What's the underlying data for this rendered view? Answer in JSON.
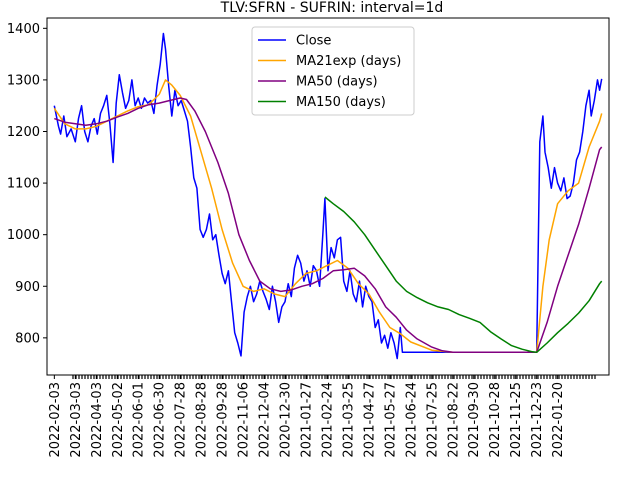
{
  "chart_data": {
    "type": "line",
    "title": "TLV:SFRN - SUFRIN: interval=1d",
    "xlabel": "",
    "ylabel": "",
    "ylim": [
      728,
      1420
    ],
    "y_ticks": [
      800,
      900,
      1000,
      1100,
      1200,
      1300,
      1400
    ],
    "x_tick_labels": [
      "2022-02-03",
      "2022-03-03",
      "2022-04-03",
      "2022-05-02",
      "2022-06-01",
      "2022-06-30",
      "2022-07-28",
      "2022-08-28",
      "2022-09-28",
      "2022-11-06",
      "2022-12-04",
      "2020-12-30",
      "2021-01-27",
      "2021-02-24",
      "2021-03-25",
      "2021-04-27",
      "2021-05-27",
      "2021-06-24",
      "2021-07-25",
      "2021-08-22",
      "2021-09-30",
      "2021-10-28",
      "2021-11-25",
      "2021-12-23",
      "2022-01-20"
    ],
    "legend_position": "upper center",
    "grid": false,
    "series": [
      {
        "name": "Close",
        "color": "#0000ff",
        "points": [
          [
            0,
            1250
          ],
          [
            0.2,
            1210
          ],
          [
            0.3,
            1195
          ],
          [
            0.45,
            1230
          ],
          [
            0.6,
            1190
          ],
          [
            0.8,
            1205
          ],
          [
            1.0,
            1180
          ],
          [
            1.15,
            1225
          ],
          [
            1.3,
            1250
          ],
          [
            1.45,
            1200
          ],
          [
            1.6,
            1180
          ],
          [
            1.75,
            1210
          ],
          [
            1.9,
            1225
          ],
          [
            2.05,
            1195
          ],
          [
            2.2,
            1235
          ],
          [
            2.35,
            1250
          ],
          [
            2.5,
            1270
          ],
          [
            2.65,
            1215
          ],
          [
            2.8,
            1140
          ],
          [
            2.95,
            1255
          ],
          [
            3.1,
            1310
          ],
          [
            3.25,
            1275
          ],
          [
            3.4,
            1245
          ],
          [
            3.55,
            1260
          ],
          [
            3.7,
            1300
          ],
          [
            3.85,
            1250
          ],
          [
            4.0,
            1265
          ],
          [
            4.15,
            1245
          ],
          [
            4.3,
            1265
          ],
          [
            4.45,
            1255
          ],
          [
            4.6,
            1260
          ],
          [
            4.75,
            1235
          ],
          [
            4.9,
            1290
          ],
          [
            5.05,
            1330
          ],
          [
            5.2,
            1390
          ],
          [
            5.3,
            1360
          ],
          [
            5.45,
            1290
          ],
          [
            5.6,
            1230
          ],
          [
            5.75,
            1280
          ],
          [
            5.9,
            1250
          ],
          [
            6.05,
            1260
          ],
          [
            6.2,
            1240
          ],
          [
            6.35,
            1220
          ],
          [
            6.5,
            1170
          ],
          [
            6.65,
            1110
          ],
          [
            6.8,
            1090
          ],
          [
            6.95,
            1010
          ],
          [
            7.1,
            995
          ],
          [
            7.25,
            1010
          ],
          [
            7.4,
            1040
          ],
          [
            7.55,
            990
          ],
          [
            7.7,
            1000
          ],
          [
            7.85,
            960
          ],
          [
            8.0,
            925
          ],
          [
            8.15,
            905
          ],
          [
            8.3,
            930
          ],
          [
            8.45,
            870
          ],
          [
            8.6,
            810
          ],
          [
            8.75,
            790
          ],
          [
            8.9,
            765
          ],
          [
            9.05,
            850
          ],
          [
            9.2,
            880
          ],
          [
            9.35,
            900
          ],
          [
            9.5,
            870
          ],
          [
            9.65,
            885
          ],
          [
            9.8,
            910
          ],
          [
            9.95,
            890
          ],
          [
            10.1,
            875
          ],
          [
            10.25,
            855
          ],
          [
            10.4,
            900
          ],
          [
            10.55,
            870
          ],
          [
            10.7,
            830
          ],
          [
            10.85,
            860
          ],
          [
            11.0,
            870
          ],
          [
            11.15,
            905
          ],
          [
            11.3,
            880
          ],
          [
            11.45,
            935
          ],
          [
            11.6,
            960
          ],
          [
            11.75,
            945
          ],
          [
            11.9,
            910
          ],
          [
            12.05,
            930
          ],
          [
            12.2,
            900
          ],
          [
            12.35,
            940
          ],
          [
            12.5,
            930
          ],
          [
            12.65,
            900
          ],
          [
            12.8,
            1000
          ],
          [
            12.9,
            1070
          ],
          [
            13.05,
            930
          ],
          [
            13.2,
            975
          ],
          [
            13.35,
            955
          ],
          [
            13.5,
            990
          ],
          [
            13.65,
            995
          ],
          [
            13.8,
            910
          ],
          [
            13.95,
            890
          ],
          [
            14.1,
            930
          ],
          [
            14.25,
            885
          ],
          [
            14.4,
            870
          ],
          [
            14.55,
            910
          ],
          [
            14.7,
            860
          ],
          [
            14.85,
            900
          ],
          [
            15.0,
            880
          ],
          [
            15.15,
            870
          ],
          [
            15.3,
            820
          ],
          [
            15.45,
            835
          ],
          [
            15.6,
            790
          ],
          [
            15.75,
            805
          ],
          [
            15.9,
            780
          ],
          [
            16.05,
            810
          ],
          [
            16.2,
            790
          ],
          [
            16.35,
            760
          ],
          [
            16.5,
            820
          ],
          [
            16.6,
            772
          ],
          [
            17.0,
            772
          ],
          [
            20.0,
            772
          ],
          [
            22.0,
            772
          ],
          [
            22.5,
            772
          ],
          [
            23.0,
            772
          ],
          [
            23.15,
            1180
          ],
          [
            23.3,
            1230
          ],
          [
            23.4,
            1160
          ],
          [
            23.55,
            1130
          ],
          [
            23.7,
            1090
          ],
          [
            23.85,
            1130
          ],
          [
            24.0,
            1100
          ],
          [
            24.15,
            1085
          ],
          [
            24.3,
            1110
          ],
          [
            24.45,
            1070
          ],
          [
            24.6,
            1075
          ],
          [
            24.75,
            1100
          ],
          [
            24.9,
            1145
          ],
          [
            25.05,
            1160
          ],
          [
            25.2,
            1200
          ],
          [
            25.35,
            1250
          ],
          [
            25.5,
            1280
          ],
          [
            25.6,
            1230
          ],
          [
            25.75,
            1260
          ],
          [
            25.9,
            1300
          ],
          [
            26.0,
            1280
          ],
          [
            26.1,
            1302
          ]
        ]
      },
      {
        "name": "MA21exp (days)",
        "color": "#ffa500",
        "points": [
          [
            0,
            1245
          ],
          [
            0.5,
            1215
          ],
          [
            1.0,
            1205
          ],
          [
            1.5,
            1205
          ],
          [
            2.0,
            1210
          ],
          [
            2.5,
            1220
          ],
          [
            3.0,
            1230
          ],
          [
            3.5,
            1240
          ],
          [
            4.0,
            1248
          ],
          [
            4.5,
            1252
          ],
          [
            5.0,
            1272
          ],
          [
            5.3,
            1300
          ],
          [
            5.6,
            1290
          ],
          [
            6.0,
            1270
          ],
          [
            6.5,
            1230
          ],
          [
            7.0,
            1160
          ],
          [
            7.5,
            1090
          ],
          [
            8.0,
            1010
          ],
          [
            8.5,
            945
          ],
          [
            9.0,
            900
          ],
          [
            9.5,
            890
          ],
          [
            10.0,
            895
          ],
          [
            10.5,
            885
          ],
          [
            11.0,
            880
          ],
          [
            11.5,
            905
          ],
          [
            12.0,
            925
          ],
          [
            12.5,
            930
          ],
          [
            13.0,
            940
          ],
          [
            13.5,
            950
          ],
          [
            14.0,
            935
          ],
          [
            14.5,
            905
          ],
          [
            15.0,
            885
          ],
          [
            15.5,
            850
          ],
          [
            16.0,
            820
          ],
          [
            16.5,
            808
          ],
          [
            17.0,
            792
          ],
          [
            18.0,
            776
          ],
          [
            19.0,
            772
          ],
          [
            20.0,
            772
          ],
          [
            22.0,
            772
          ],
          [
            23.0,
            772
          ],
          [
            23.3,
            900
          ],
          [
            23.6,
            990
          ],
          [
            24.0,
            1060
          ],
          [
            24.5,
            1085
          ],
          [
            25.0,
            1100
          ],
          [
            25.5,
            1170
          ],
          [
            26.0,
            1220
          ],
          [
            26.1,
            1235
          ]
        ]
      },
      {
        "name": "MA50 (days)",
        "color": "#800080",
        "points": [
          [
            0,
            1225
          ],
          [
            0.5,
            1218
          ],
          [
            1.0,
            1215
          ],
          [
            1.5,
            1212
          ],
          [
            2.0,
            1215
          ],
          [
            2.5,
            1220
          ],
          [
            3.0,
            1228
          ],
          [
            3.5,
            1235
          ],
          [
            4.0,
            1245
          ],
          [
            4.5,
            1252
          ],
          [
            5.0,
            1255
          ],
          [
            5.5,
            1260
          ],
          [
            6.0,
            1265
          ],
          [
            6.3,
            1262
          ],
          [
            6.7,
            1240
          ],
          [
            7.2,
            1200
          ],
          [
            7.8,
            1140
          ],
          [
            8.3,
            1080
          ],
          [
            8.8,
            1000
          ],
          [
            9.3,
            950
          ],
          [
            9.8,
            910
          ],
          [
            10.3,
            895
          ],
          [
            10.8,
            890
          ],
          [
            11.3,
            893
          ],
          [
            11.8,
            900
          ],
          [
            12.3,
            905
          ],
          [
            12.8,
            915
          ],
          [
            13.3,
            930
          ],
          [
            13.8,
            932
          ],
          [
            14.3,
            935
          ],
          [
            14.8,
            920
          ],
          [
            15.3,
            895
          ],
          [
            15.8,
            860
          ],
          [
            16.3,
            840
          ],
          [
            16.8,
            815
          ],
          [
            17.3,
            798
          ],
          [
            18.0,
            782
          ],
          [
            18.5,
            775
          ],
          [
            19.0,
            772
          ],
          [
            20.0,
            772
          ],
          [
            22.0,
            772
          ],
          [
            23.0,
            772
          ],
          [
            23.5,
            830
          ],
          [
            24.0,
            900
          ],
          [
            24.5,
            960
          ],
          [
            25.0,
            1020
          ],
          [
            25.5,
            1090
          ],
          [
            26.0,
            1165
          ],
          [
            26.1,
            1170
          ]
        ]
      },
      {
        "name": "MA150 (days)",
        "color": "#008000",
        "points": [
          [
            12.9,
            1073
          ],
          [
            13.3,
            1060
          ],
          [
            13.8,
            1045
          ],
          [
            14.3,
            1025
          ],
          [
            14.8,
            1000
          ],
          [
            15.3,
            970
          ],
          [
            15.8,
            940
          ],
          [
            16.3,
            910
          ],
          [
            16.8,
            890
          ],
          [
            17.3,
            878
          ],
          [
            17.8,
            868
          ],
          [
            18.3,
            860
          ],
          [
            18.8,
            855
          ],
          [
            19.3,
            845
          ],
          [
            19.8,
            838
          ],
          [
            20.3,
            830
          ],
          [
            20.8,
            812
          ],
          [
            21.3,
            798
          ],
          [
            21.8,
            785
          ],
          [
            22.3,
            778
          ],
          [
            22.8,
            773
          ],
          [
            23.0,
            772
          ],
          [
            23.5,
            790
          ],
          [
            24.0,
            810
          ],
          [
            24.5,
            828
          ],
          [
            25.0,
            848
          ],
          [
            25.5,
            872
          ],
          [
            26.0,
            905
          ],
          [
            26.1,
            910
          ]
        ]
      }
    ]
  }
}
